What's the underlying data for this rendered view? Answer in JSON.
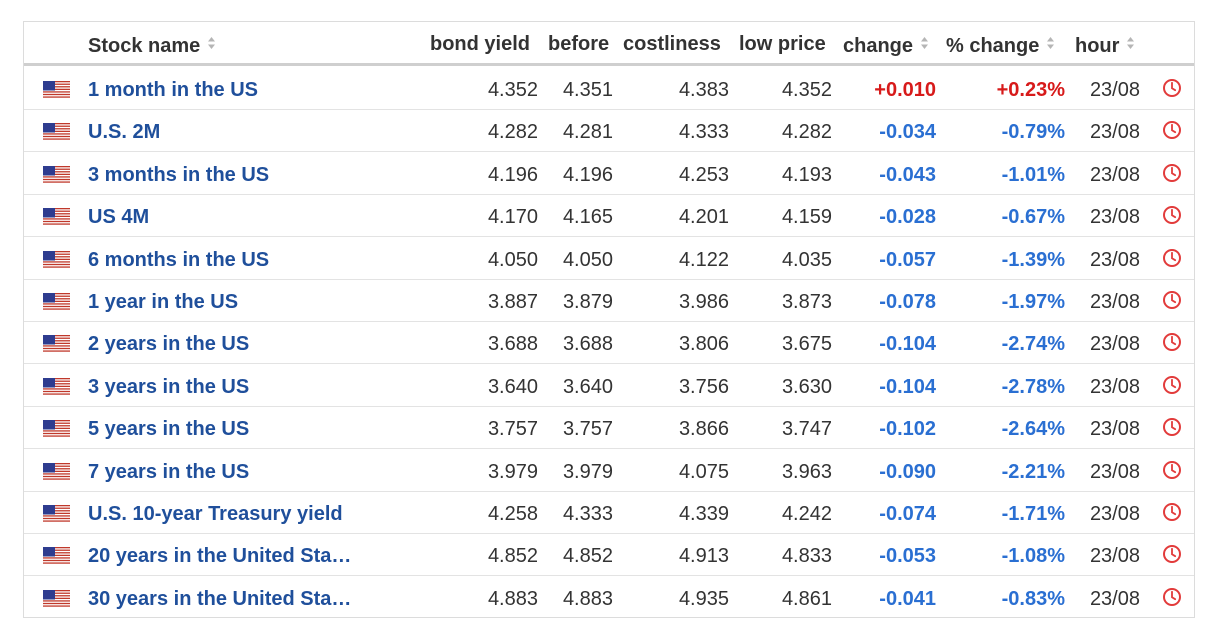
{
  "headers": {
    "name": "Stock name",
    "bond_yield": "bond yield",
    "before": "before",
    "costliness": "costliness",
    "low_price": "low price",
    "change": "change",
    "pct_change": "% change",
    "hour": "hour"
  },
  "colors": {
    "positive": "#d71a1a",
    "negative": "#2a6fd2",
    "name": "#1f4f9b"
  },
  "rows": [
    {
      "name": "1 month in the US",
      "bond_yield": "4.352",
      "before": "4.351",
      "costliness": "4.383",
      "low_price": "4.352",
      "change": "+0.010",
      "pct_change": "+0.23%",
      "hour": "23/08",
      "direction": "up"
    },
    {
      "name": "U.S. 2M",
      "bond_yield": "4.282",
      "before": "4.281",
      "costliness": "4.333",
      "low_price": "4.282",
      "change": "-0.034",
      "pct_change": "-0.79%",
      "hour": "23/08",
      "direction": "down"
    },
    {
      "name": "3 months in the US",
      "bond_yield": "4.196",
      "before": "4.196",
      "costliness": "4.253",
      "low_price": "4.193",
      "change": "-0.043",
      "pct_change": "-1.01%",
      "hour": "23/08",
      "direction": "down"
    },
    {
      "name": "US 4M",
      "bond_yield": "4.170",
      "before": "4.165",
      "costliness": "4.201",
      "low_price": "4.159",
      "change": "-0.028",
      "pct_change": "-0.67%",
      "hour": "23/08",
      "direction": "down"
    },
    {
      "name": "6 months in the US",
      "bond_yield": "4.050",
      "before": "4.050",
      "costliness": "4.122",
      "low_price": "4.035",
      "change": "-0.057",
      "pct_change": "-1.39%",
      "hour": "23/08",
      "direction": "down"
    },
    {
      "name": "1 year in the US",
      "bond_yield": "3.887",
      "before": "3.879",
      "costliness": "3.986",
      "low_price": "3.873",
      "change": "-0.078",
      "pct_change": "-1.97%",
      "hour": "23/08",
      "direction": "down"
    },
    {
      "name": "2 years in the US",
      "bond_yield": "3.688",
      "before": "3.688",
      "costliness": "3.806",
      "low_price": "3.675",
      "change": "-0.104",
      "pct_change": "-2.74%",
      "hour": "23/08",
      "direction": "down"
    },
    {
      "name": "3 years in the US",
      "bond_yield": "3.640",
      "before": "3.640",
      "costliness": "3.756",
      "low_price": "3.630",
      "change": "-0.104",
      "pct_change": "-2.78%",
      "hour": "23/08",
      "direction": "down"
    },
    {
      "name": "5 years in the US",
      "bond_yield": "3.757",
      "before": "3.757",
      "costliness": "3.866",
      "low_price": "3.747",
      "change": "-0.102",
      "pct_change": "-2.64%",
      "hour": "23/08",
      "direction": "down"
    },
    {
      "name": "7 years in the US",
      "bond_yield": "3.979",
      "before": "3.979",
      "costliness": "4.075",
      "low_price": "3.963",
      "change": "-0.090",
      "pct_change": "-2.21%",
      "hour": "23/08",
      "direction": "down"
    },
    {
      "name": "U.S. 10-year Treasury yield",
      "bond_yield": "4.258",
      "before": "4.333",
      "costliness": "4.339",
      "low_price": "4.242",
      "change": "-0.074",
      "pct_change": "-1.71%",
      "hour": "23/08",
      "direction": "down"
    },
    {
      "name": "20 years in the United Sta…",
      "bond_yield": "4.852",
      "before": "4.852",
      "costliness": "4.913",
      "low_price": "4.833",
      "change": "-0.053",
      "pct_change": "-1.08%",
      "hour": "23/08",
      "direction": "down"
    },
    {
      "name": "30 years in the United Sta…",
      "bond_yield": "4.883",
      "before": "4.883",
      "costliness": "4.935",
      "low_price": "4.861",
      "change": "-0.041",
      "pct_change": "-0.83%",
      "hour": "23/08",
      "direction": "down"
    }
  ]
}
